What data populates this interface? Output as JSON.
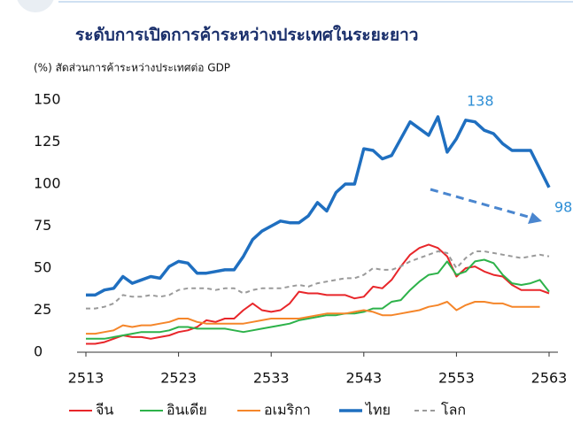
{
  "chart_data": {
    "type": "line",
    "title": "ระดับการเปิดการค้าระหว่างประเทศในระยะยาว",
    "y_label": "(%) สัดส่วนการค้าระหว่างประเทศต่อ GDP",
    "x": [
      2513,
      2514,
      2515,
      2516,
      2517,
      2518,
      2519,
      2520,
      2521,
      2522,
      2523,
      2524,
      2525,
      2526,
      2527,
      2528,
      2529,
      2530,
      2531,
      2532,
      2533,
      2534,
      2535,
      2536,
      2537,
      2538,
      2539,
      2540,
      2541,
      2542,
      2543,
      2544,
      2545,
      2546,
      2547,
      2548,
      2549,
      2550,
      2551,
      2552,
      2553,
      2554,
      2555,
      2556,
      2557,
      2558,
      2559,
      2560,
      2561,
      2562,
      2563
    ],
    "xlim": [
      2513,
      2563
    ],
    "xticks": [
      2513,
      2523,
      2533,
      2543,
      2553,
      2563
    ],
    "ylim": [
      0,
      150
    ],
    "yticks": [
      0,
      25,
      50,
      75,
      100,
      125,
      150
    ],
    "annotations": [
      "138",
      "98"
    ],
    "series": [
      {
        "name": "จีน",
        "color": "#e8262a",
        "values": [
          5,
          5,
          6,
          8,
          10,
          9,
          9,
          8,
          9,
          10,
          12,
          13,
          15,
          19,
          18,
          20,
          20,
          25,
          29,
          25,
          24,
          25,
          29,
          36,
          35,
          35,
          34,
          34,
          34,
          32,
          33,
          39,
          38,
          43,
          51,
          58,
          62,
          64,
          62,
          57,
          45,
          50,
          51,
          48,
          46,
          45,
          40,
          37,
          37,
          37,
          35
        ]
      },
      {
        "name": "อินเดีย",
        "color": "#2db24a",
        "values": [
          8,
          8,
          8,
          9,
          10,
          11,
          12,
          12,
          12,
          13,
          15,
          15,
          14,
          14,
          14,
          14,
          13,
          12,
          13,
          14,
          15,
          16,
          17,
          19,
          20,
          21,
          22,
          22,
          23,
          23,
          24,
          26,
          26,
          30,
          31,
          37,
          42,
          46,
          47,
          54,
          46,
          48,
          54,
          55,
          53,
          46,
          41,
          40,
          41,
          43,
          36
        ]
      },
      {
        "name": "อเมริกา",
        "color": "#f5862a",
        "values": [
          11,
          11,
          12,
          13,
          16,
          15,
          16,
          16,
          17,
          18,
          20,
          20,
          18,
          17,
          17,
          17,
          17,
          17,
          18,
          19,
          20,
          20,
          20,
          20,
          21,
          22,
          23,
          23,
          23,
          24,
          25,
          24,
          22,
          22,
          23,
          24,
          25,
          27,
          28,
          30,
          25,
          28,
          30,
          30,
          29,
          29,
          27,
          27,
          27,
          27,
          null
        ]
      },
      {
        "name": "ไทย",
        "color": "#1f6fc0",
        "thick": true,
        "values": [
          34,
          34,
          37,
          38,
          45,
          41,
          43,
          45,
          44,
          51,
          54,
          53,
          47,
          47,
          48,
          49,
          49,
          57,
          67,
          72,
          75,
          78,
          77,
          77,
          81,
          89,
          84,
          95,
          100,
          100,
          121,
          120,
          115,
          117,
          127,
          137,
          133,
          129,
          140,
          119,
          127,
          138,
          137,
          132,
          130,
          124,
          120,
          120,
          120,
          109,
          98
        ]
      },
      {
        "name": "โลก",
        "color": "#9a9a9a",
        "dashed": true,
        "values": [
          26,
          26,
          27,
          29,
          34,
          33,
          33,
          34,
          33,
          34,
          37,
          38,
          38,
          38,
          37,
          38,
          38,
          35,
          37,
          38,
          38,
          38,
          39,
          40,
          39,
          41,
          42,
          43,
          44,
          44,
          46,
          50,
          49,
          49,
          51,
          54,
          56,
          58,
          60,
          59,
          50,
          56,
          60,
          60,
          59,
          58,
          57,
          56,
          57,
          58,
          57
        ]
      }
    ]
  }
}
